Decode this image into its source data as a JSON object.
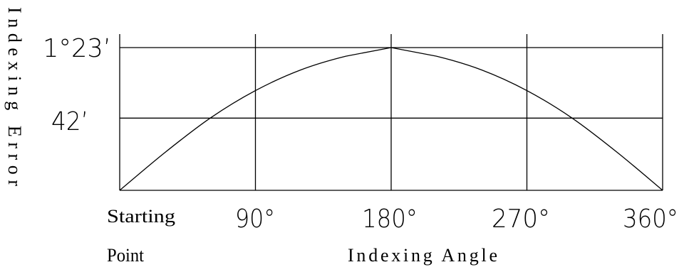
{
  "chart_data": {
    "type": "line",
    "xlabel": "Indexing Angle",
    "ylabel": "Indexing Error",
    "x_start_label": [
      "Starting",
      "Point"
    ],
    "x_ticks": [
      {
        "value": 90,
        "label": "90°"
      },
      {
        "value": 180,
        "label": "180°"
      },
      {
        "value": 270,
        "label": "270°"
      },
      {
        "value": 360,
        "label": "360°"
      }
    ],
    "y_ticks": [
      {
        "value": 42,
        "label": "42’"
      },
      {
        "value": 83,
        "label": "1°23’"
      }
    ],
    "xlim": [
      0,
      360
    ],
    "ylim": [
      0,
      83
    ],
    "grid": true,
    "series": [
      {
        "x": [
          0,
          30,
          60,
          90,
          120,
          150,
          180,
          210,
          240,
          270,
          300,
          330,
          360
        ],
        "y": [
          0,
          22,
          42,
          58,
          70,
          78,
          83,
          78,
          70,
          58,
          42,
          22,
          0
        ]
      }
    ],
    "colors": {
      "line": "#000000",
      "background": "#ffffff"
    }
  }
}
